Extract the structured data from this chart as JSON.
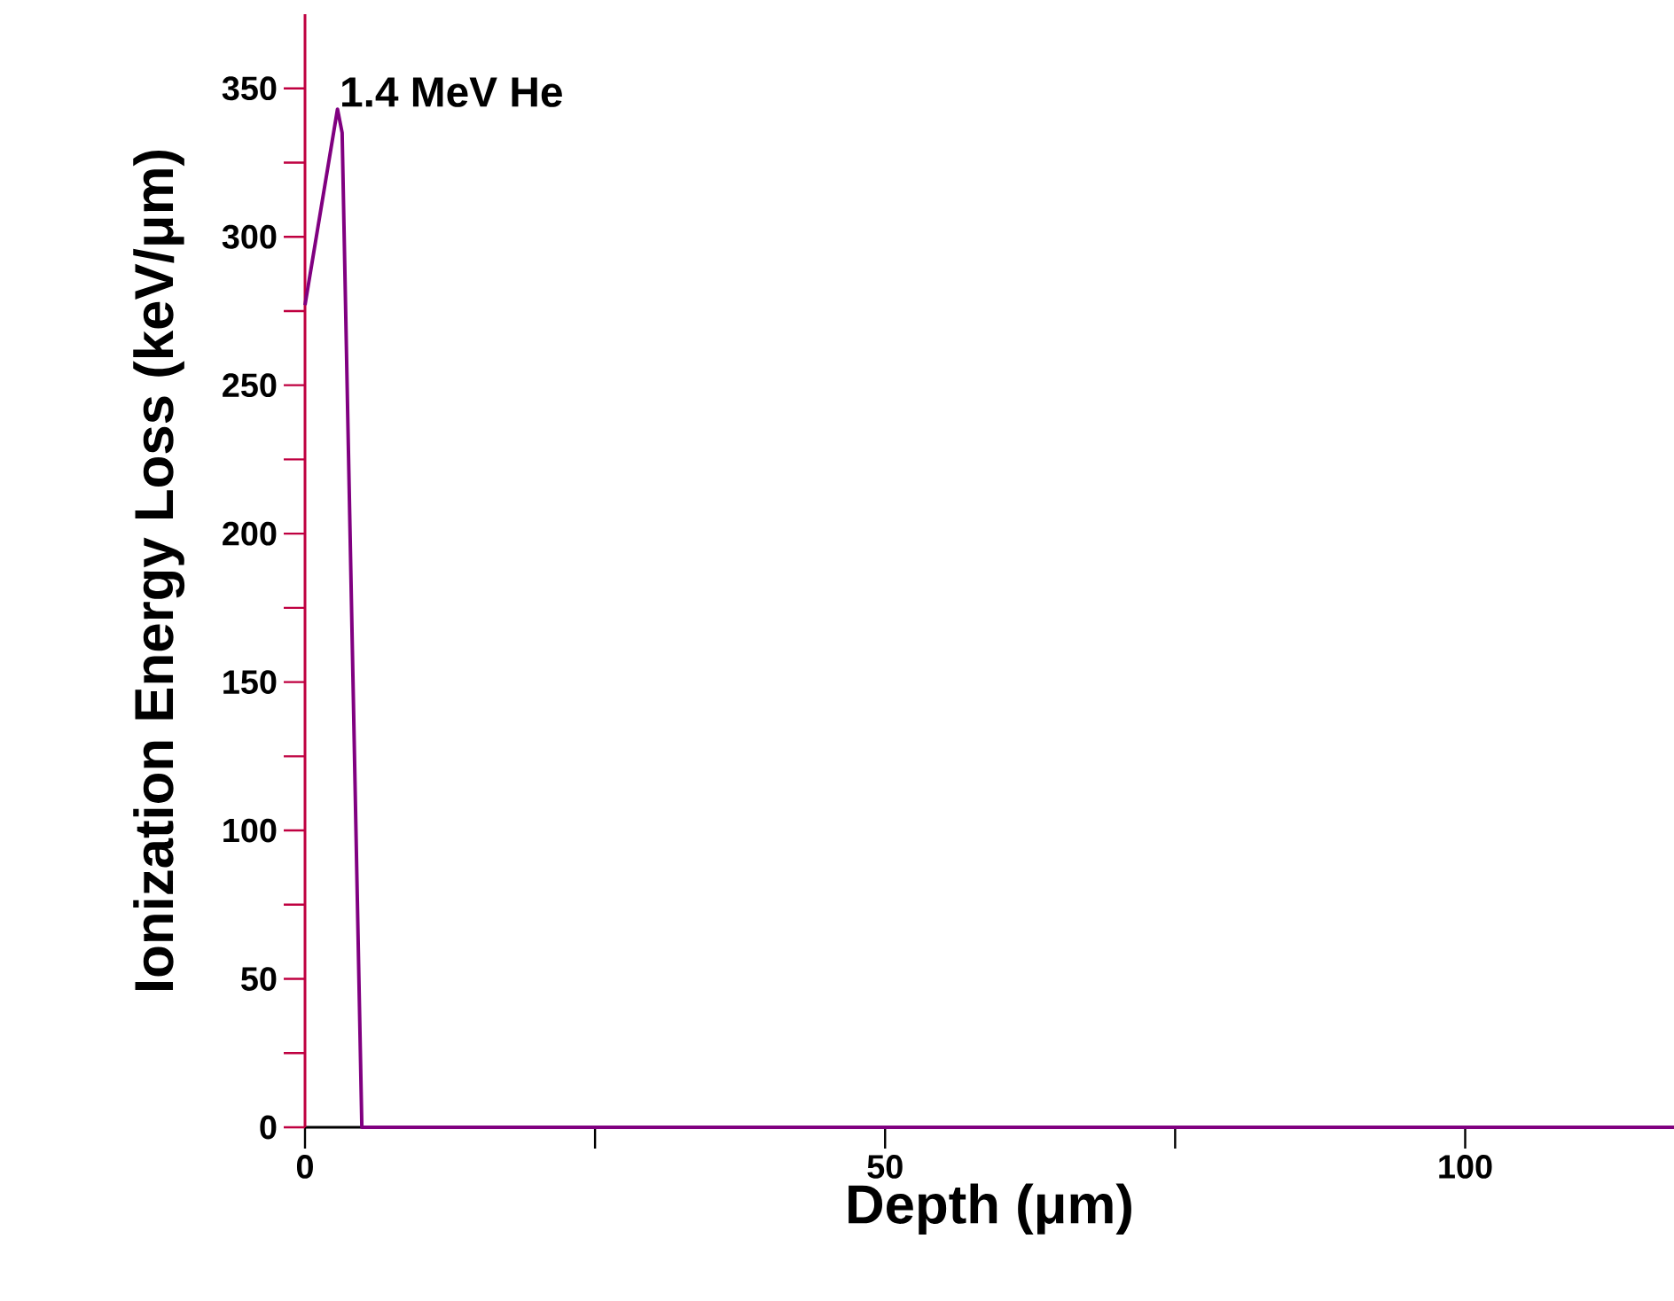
{
  "chart_data": {
    "type": "line",
    "xlabel": "Depth (μm)",
    "ylabel": "Ionization Energy Loss (keV/μm)",
    "x": [
      0,
      2.8,
      3.2,
      4.9,
      118
    ],
    "series": [
      {
        "name": "1.4 MeV He",
        "color": "#800080",
        "values": [
          277,
          343,
          335,
          0,
          0
        ]
      }
    ],
    "xlim": [
      0,
      118
    ],
    "ylim": [
      0,
      375
    ],
    "xticks": [
      0,
      {
        "value": 25,
        "label": null
      },
      50,
      {
        "value": 75,
        "label": null
      },
      100
    ],
    "yticks": [
      0,
      {
        "value": 25,
        "label": null
      },
      50,
      {
        "value": 75,
        "label": null
      },
      100,
      {
        "value": 125,
        "label": null
      },
      150,
      {
        "value": 175,
        "label": null
      },
      200,
      {
        "value": 225,
        "label": null
      },
      250,
      {
        "value": 275,
        "label": null
      },
      300,
      {
        "value": 325,
        "label": null
      },
      350
    ],
    "grid": false,
    "legend": false,
    "marker": "none",
    "line_style": "solid"
  }
}
